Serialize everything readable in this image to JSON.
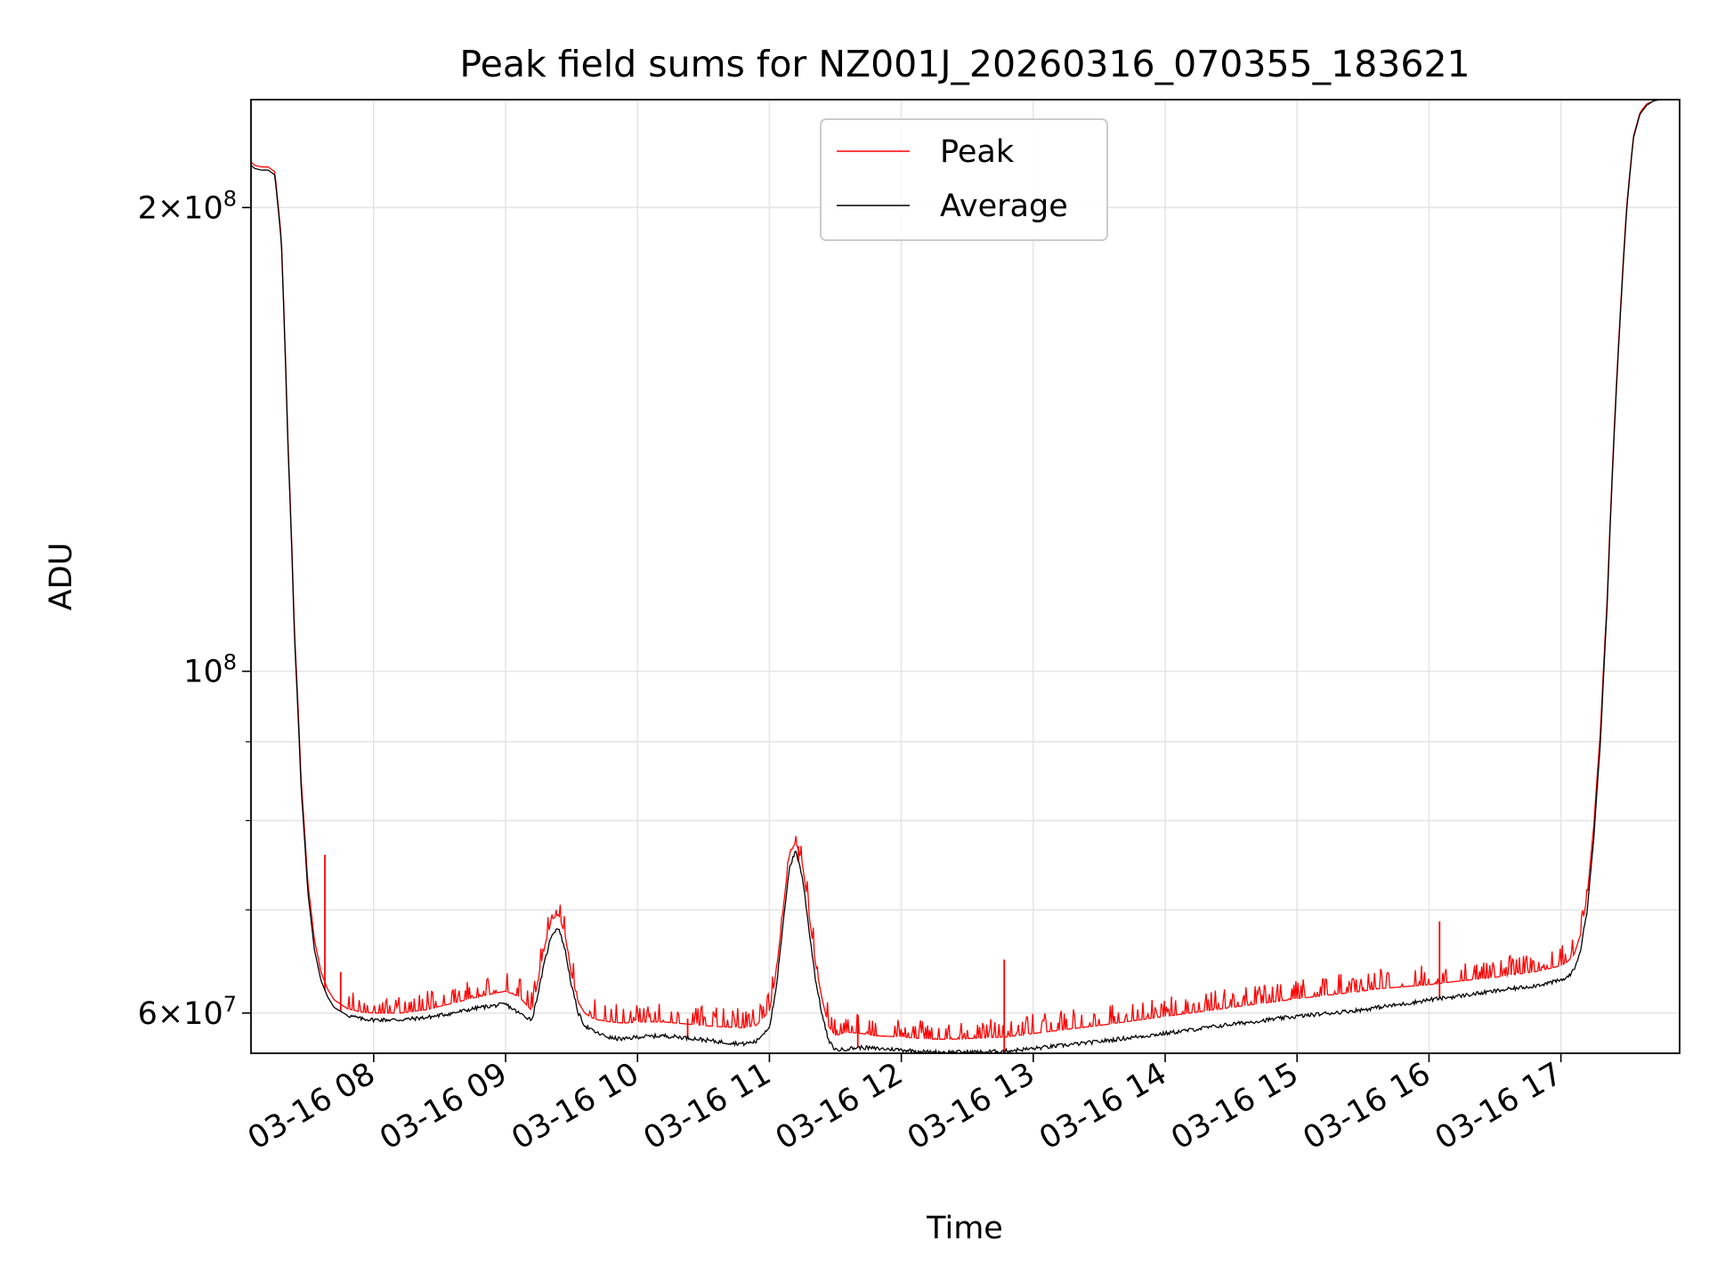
{
  "chart_data": {
    "type": "line",
    "title": "Peak field sums for NZ001J_20260316_070355_183621",
    "xlabel": "Time",
    "ylabel": "ADU",
    "yscale": "log",
    "grid": true,
    "legend_location": "upper-center",
    "xlim": [
      7.07,
      17.9
    ],
    "ylim": [
      56500000,
      235000000
    ],
    "x_ticks": [
      {
        "value": 8,
        "label": "03-16 08"
      },
      {
        "value": 9,
        "label": "03-16 09"
      },
      {
        "value": 10,
        "label": "03-16 10"
      },
      {
        "value": 11,
        "label": "03-16 11"
      },
      {
        "value": 12,
        "label": "03-16 12"
      },
      {
        "value": 13,
        "label": "03-16 13"
      },
      {
        "value": 14,
        "label": "03-16 14"
      },
      {
        "value": 15,
        "label": "03-16 15"
      },
      {
        "value": 16,
        "label": "03-16 16"
      },
      {
        "value": 17,
        "label": "03-16 17"
      }
    ],
    "y_major_ticks": [
      {
        "value": 60000000,
        "mantissa": "6",
        "base": "10",
        "exp": "7"
      },
      {
        "value": 100000000,
        "mantissa": "",
        "base": "10",
        "exp": "8"
      },
      {
        "value": 200000000,
        "mantissa": "2",
        "base": "10",
        "exp": "8"
      }
    ],
    "y_minor_ticks": [
      70000000,
      80000000,
      90000000
    ],
    "times_multiply": "×",
    "series": [
      {
        "name": "Average",
        "color": "#000000",
        "x": [
          7.07,
          7.1,
          7.15,
          7.2,
          7.25,
          7.3,
          7.35,
          7.4,
          7.45,
          7.5,
          7.55,
          7.6,
          7.65,
          7.7,
          7.8,
          7.9,
          8.0,
          8.2,
          8.4,
          8.6,
          8.8,
          9.0,
          9.1,
          9.2,
          9.25,
          9.3,
          9.35,
          9.4,
          9.45,
          9.5,
          9.55,
          9.6,
          9.65,
          9.7,
          9.8,
          9.9,
          10.0,
          10.2,
          10.4,
          10.6,
          10.8,
          10.9,
          11.0,
          11.05,
          11.1,
          11.15,
          11.2,
          11.25,
          11.3,
          11.35,
          11.4,
          11.45,
          11.5,
          11.55,
          11.6,
          11.7,
          11.8,
          12.0,
          12.2,
          12.4,
          12.6,
          12.8,
          13.0,
          13.5,
          14.0,
          14.5,
          15.0,
          15.5,
          15.6,
          15.8,
          16.0,
          16.2,
          16.5,
          16.8,
          17.0,
          17.05,
          17.1,
          17.15,
          17.2,
          17.25,
          17.3,
          17.35,
          17.4,
          17.45,
          17.5,
          17.55,
          17.6,
          17.65,
          17.7,
          17.75,
          17.8,
          17.9
        ],
        "y": [
          213000000,
          212000000,
          211500000,
          211500000,
          210000000,
          190000000,
          140000000,
          105000000,
          84000000,
          72000000,
          66000000,
          63000000,
          61500000,
          60500000,
          59800000,
          59500000,
          59400000,
          59400000,
          59600000,
          60000000,
          60500000,
          60800000,
          60000000,
          59400000,
          62000000,
          65000000,
          67500000,
          68200000,
          66000000,
          62500000,
          60000000,
          58900000,
          58500000,
          58200000,
          57800000,
          57700000,
          57900000,
          58000000,
          57800000,
          57500000,
          57300000,
          57500000,
          58800000,
          62000000,
          68000000,
          74500000,
          76500000,
          73500000,
          68000000,
          63000000,
          59800000,
          57500000,
          56800000,
          56800000,
          56900000,
          57000000,
          56900000,
          56800000,
          56600000,
          56600000,
          56600000,
          56700000,
          56900000,
          57500000,
          58200000,
          59000000,
          59700000,
          60300000,
          60500000,
          60800000,
          61200000,
          61500000,
          62000000,
          62500000,
          63000000,
          63300000,
          64000000,
          66000000,
          70000000,
          78000000,
          90000000,
          110000000,
          140000000,
          170000000,
          200000000,
          222000000,
          230000000,
          233000000,
          234500000,
          235000000,
          235000000,
          235000000
        ]
      },
      {
        "name": "Peak",
        "color": "#ff0000",
        "x": [
          7.07,
          7.1,
          7.15,
          7.2,
          7.25,
          7.3,
          7.35,
          7.4,
          7.45,
          7.5,
          7.55,
          7.6,
          7.65,
          7.7,
          7.8,
          7.9,
          8.0,
          8.2,
          8.4,
          8.6,
          8.8,
          9.0,
          9.1,
          9.2,
          9.25,
          9.3,
          9.35,
          9.4,
          9.45,
          9.5,
          9.55,
          9.6,
          9.65,
          9.7,
          9.8,
          9.9,
          10.0,
          10.2,
          10.4,
          10.6,
          10.8,
          10.9,
          11.0,
          11.05,
          11.1,
          11.15,
          11.2,
          11.25,
          11.3,
          11.35,
          11.4,
          11.45,
          11.5,
          11.55,
          11.6,
          11.7,
          11.8,
          12.0,
          12.2,
          12.4,
          12.6,
          12.8,
          13.0,
          13.5,
          14.0,
          14.5,
          15.0,
          15.5,
          15.6,
          15.8,
          16.0,
          16.2,
          16.5,
          16.8,
          17.0,
          17.05,
          17.1,
          17.15,
          17.2,
          17.25,
          17.3,
          17.35,
          17.4,
          17.45,
          17.5,
          17.55,
          17.6,
          17.65,
          17.7,
          17.75,
          17.8,
          17.9
        ],
        "y": [
          214000000,
          213000000,
          212500000,
          212500000,
          211000000,
          191000000,
          141000000,
          106000000,
          85000000,
          73000000,
          67000000,
          63800000,
          62200000,
          61200000,
          60400000,
          60100000,
          60000000,
          60000000,
          60300000,
          60900000,
          61500000,
          62000000,
          61500000,
          60200000,
          63200000,
          66500000,
          69000000,
          69500000,
          67500000,
          63500000,
          61000000,
          60000000,
          59600000,
          59400000,
          59200000,
          59100000,
          59200000,
          59200000,
          59000000,
          58800000,
          58700000,
          58900000,
          60200000,
          63500000,
          69500000,
          76000000,
          77500000,
          75000000,
          69500000,
          64500000,
          61200000,
          58800000,
          58000000,
          58200000,
          58300000,
          58200000,
          58000000,
          57900000,
          57700000,
          57700000,
          57800000,
          57900000,
          58200000,
          58900000,
          59700000,
          60500000,
          61300000,
          62000000,
          62200000,
          62400000,
          62600000,
          62900000,
          63300000,
          63800000,
          64400000,
          64800000,
          65500000,
          67500000,
          71500000,
          79500000,
          91500000,
          111000000,
          141000000,
          171000000,
          201000000,
          222500000,
          230500000,
          233500000,
          234500000,
          235000000,
          235000000,
          235000000
        ],
        "spikes": [
          {
            "x": 7.63,
            "y": 76000000
          },
          {
            "x": 7.75,
            "y": 63800000
          },
          {
            "x": 10.38,
            "y": 59500000
          },
          {
            "x": 11.22,
            "y": 77000000
          },
          {
            "x": 11.67,
            "y": 59800000
          },
          {
            "x": 12.78,
            "y": 65000000
          },
          {
            "x": 16.08,
            "y": 68800000
          }
        ]
      }
    ]
  }
}
